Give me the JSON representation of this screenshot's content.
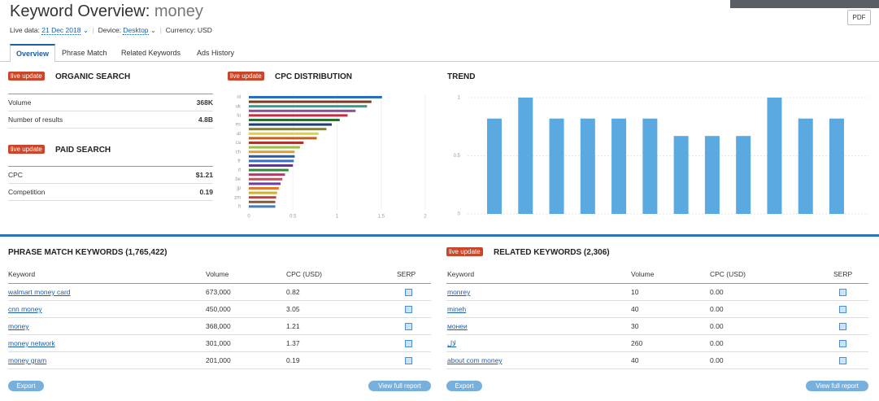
{
  "header": {
    "title": "Keyword Overview:",
    "keyword": "money",
    "live_label": "Live data:",
    "date": "21 Dec 2018",
    "device_label": "Device:",
    "device": "Desktop",
    "currency": "Currency: USD",
    "pdf": "PDF"
  },
  "tabs": [
    "Overview",
    "Phrase Match",
    "Related Keywords",
    "Ads History"
  ],
  "organic": {
    "badge": "live update",
    "title": "ORGANIC SEARCH",
    "rows": [
      [
        "Volume",
        "368K"
      ],
      [
        "Number of results",
        "4.8B"
      ]
    ]
  },
  "paid": {
    "badge": "live update",
    "title": "PAID SEARCH",
    "rows": [
      [
        "CPC",
        "$1.21"
      ],
      [
        "Competition",
        "0.19"
      ]
    ]
  },
  "cpc_chart": {
    "type": "hbar",
    "badge": "live update",
    "title": "CPC DISTRIBUTION",
    "categories": [
      "nl",
      null,
      "uk",
      null,
      "lu",
      null,
      "es",
      null,
      "at",
      null,
      "ca",
      null,
      "ch",
      null,
      "fr",
      null,
      "it",
      null,
      "be",
      null,
      "jp",
      null,
      "zm",
      null,
      "fi"
    ],
    "values": [
      1.51,
      1.39,
      1.34,
      1.21,
      1.12,
      1.03,
      0.94,
      0.88,
      0.79,
      0.77,
      0.62,
      0.58,
      0.52,
      0.52,
      0.51,
      0.5,
      0.45,
      0.41,
      0.38,
      0.36,
      0.34,
      0.32,
      0.31,
      0.3,
      0.3
    ],
    "colors": [
      "#2a6ebf",
      "#7a3b1e",
      "#3a9a8a",
      "#8a4fa0",
      "#c0304a",
      "#2f6b2f",
      "#1f3f7a",
      "#8a7f2a",
      "#e0d040",
      "#c06020",
      "#b03030",
      "#9ac040",
      "#e0a030",
      "#2a5ab0",
      "#3a70c0",
      "#5a3a90",
      "#2f8a3a",
      "#c03070",
      "#d04a4a",
      "#6a40a0",
      "#e07a30",
      "#d0b030",
      "#c04040",
      "#8a5a30",
      "#4a7ab0"
    ],
    "xlim": [
      0,
      2
    ],
    "xticks": [
      0,
      0.5,
      1,
      1.5,
      2
    ]
  },
  "trend_chart": {
    "type": "bar",
    "title": "TREND",
    "values": [
      0.82,
      1,
      0.82,
      0.82,
      0.82,
      0.82,
      0.67,
      0.67,
      0.67,
      1,
      0.82,
      0.82
    ],
    "color": "#5aa9e0",
    "ylim": [
      0,
      1
    ],
    "yticks": [
      0,
      0.5,
      1
    ]
  },
  "phrase": {
    "title": "PHRASE MATCH KEYWORDS (1,765,422)",
    "columns": [
      "Keyword",
      "Volume",
      "CPC (USD)",
      "SERP"
    ],
    "rows": [
      [
        "walmart money card",
        "673,000",
        "0.82"
      ],
      [
        "cnn money",
        "450,000",
        "3.05"
      ],
      [
        "money",
        "368,000",
        "1.21"
      ],
      [
        "money network",
        "301,000",
        "1.37"
      ],
      [
        "money gram",
        "201,000",
        "0.19"
      ]
    ],
    "export": "Export",
    "view": "View full report"
  },
  "related": {
    "badge": "live update",
    "title": "RELATED KEYWORDS (2,306)",
    "columns": [
      "Keyword",
      "Volume",
      "CPC (USD)",
      "SERP"
    ],
    "rows": [
      [
        "monrey",
        "10",
        "0.00"
      ],
      [
        "mineh",
        "40",
        "0.00"
      ],
      [
        "монеи",
        "30",
        "0.00"
      ],
      [
        "لال",
        "260",
        "0.00"
      ],
      [
        "about com money",
        "40",
        "0.00"
      ]
    ],
    "export": "Export",
    "view": "View full report"
  }
}
